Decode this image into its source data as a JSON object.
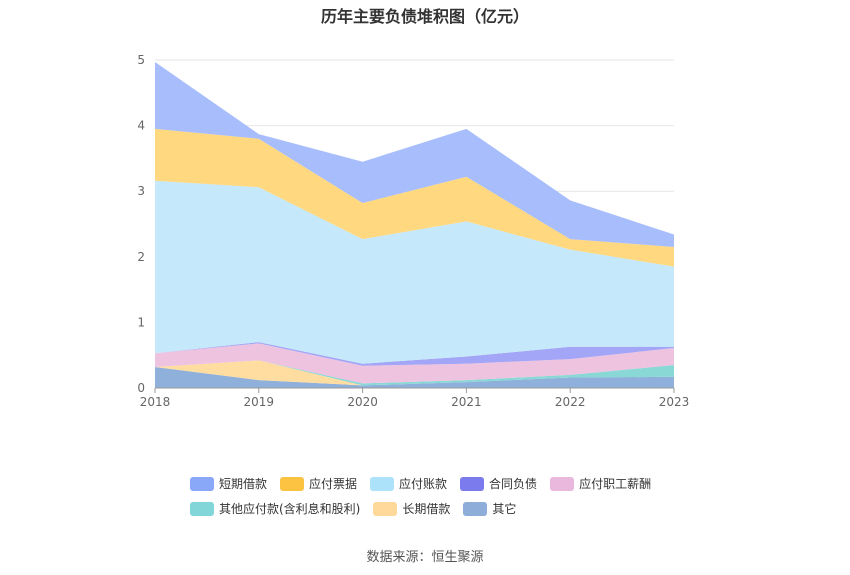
{
  "title": "历年主要负债堆积图（亿元）",
  "source": "数据来源：恒生聚源",
  "chart_data": {
    "type": "area",
    "stacked": true,
    "title": "历年主要负债堆积图（亿元）",
    "xlabel": "",
    "ylabel": "",
    "categories": [
      "2018",
      "2019",
      "2020",
      "2021",
      "2022",
      "2023"
    ],
    "ylim": [
      0,
      5
    ],
    "yticks": [
      0,
      1,
      2,
      3,
      4,
      5
    ],
    "grid": true,
    "legend_position": "bottom",
    "series": [
      {
        "name": "其它",
        "color": "#8eb0db",
        "values": [
          0.32,
          0.12,
          0.04,
          0.09,
          0.16,
          0.17
        ]
      },
      {
        "name": "长期借款",
        "color": "#ffdca0",
        "values": [
          0.0,
          0.3,
          0.0,
          0.0,
          0.0,
          0.0
        ]
      },
      {
        "name": "其他应付款(含利息和股利)",
        "color": "#8ad8d6",
        "values": [
          0.0,
          0.0,
          0.03,
          0.03,
          0.04,
          0.18
        ]
      },
      {
        "name": "应付职工薪酬",
        "color": "#edc3e0",
        "values": [
          0.21,
          0.26,
          0.27,
          0.25,
          0.24,
          0.26
        ]
      },
      {
        "name": "合同负债",
        "color": "#a3a6f6",
        "values": [
          0.0,
          0.02,
          0.03,
          0.11,
          0.19,
          0.02
        ]
      },
      {
        "name": "应付账款",
        "color": "#c5e8fa",
        "values": [
          2.63,
          2.36,
          1.9,
          2.06,
          1.48,
          1.22
        ]
      },
      {
        "name": "应付票据",
        "color": "#ffd880",
        "values": [
          0.79,
          0.74,
          0.55,
          0.68,
          0.16,
          0.3
        ]
      },
      {
        "name": "短期借款",
        "color": "#a8bdfb",
        "values": [
          1.02,
          0.07,
          0.63,
          0.73,
          0.59,
          0.19
        ]
      }
    ]
  },
  "legend": {
    "row1": [
      {
        "label": "短期借款",
        "color": "#8aa8f8"
      },
      {
        "label": "应付票据",
        "color": "#fcc342"
      },
      {
        "label": "应付账款",
        "color": "#ade2fb"
      },
      {
        "label": "合同负债",
        "color": "#7b7bee"
      },
      {
        "label": "应付职工薪酬",
        "color": "#ebb8dd"
      }
    ],
    "row2": [
      {
        "label": "其他应付款(含利息和股利)",
        "color": "#82d6d8"
      },
      {
        "label": "长期借款",
        "color": "#ffd99a"
      },
      {
        "label": "其它",
        "color": "#8eaed9"
      }
    ]
  }
}
